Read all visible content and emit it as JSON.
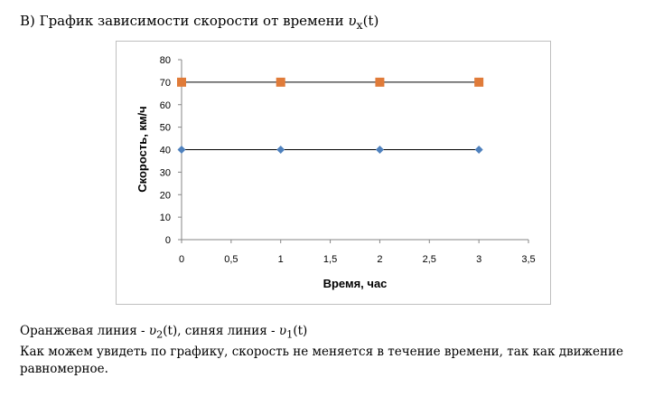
{
  "heading": {
    "prefix": "B)  График зависимости скорости от времени ",
    "variable": "υ",
    "subscript": "x",
    "argument": "(t)"
  },
  "chart_data": {
    "type": "line",
    "xlabel": "Время, час",
    "ylabel": "Скорость, км/ч",
    "xlim": [
      0,
      3.5
    ],
    "ylim": [
      0,
      80
    ],
    "x_ticks": [
      "0",
      "0,5",
      "1",
      "1,5",
      "2",
      "2,5",
      "3",
      "3,5"
    ],
    "y_ticks": [
      "0",
      "10",
      "20",
      "30",
      "40",
      "50",
      "60",
      "70",
      "80"
    ],
    "grid": false,
    "legend": "none",
    "series": [
      {
        "x": [
          0,
          1,
          2,
          3
        ],
        "values": [
          70,
          70,
          70,
          70
        ],
        "marker": "square",
        "color": "#E07B39"
      },
      {
        "x": [
          0,
          1,
          2,
          3
        ],
        "values": [
          40,
          40,
          40,
          40
        ],
        "marker": "diamond",
        "color": "#4F81BD"
      }
    ]
  },
  "caption": {
    "line1_part1": "Оранжевая линия - ",
    "v2_var": "υ",
    "v2_sub": "2",
    "v2_arg": "(t)",
    "line1_part2": ",  синяя линия - ",
    "v1_var": "υ",
    "v1_sub": "1",
    "v1_arg": "(t)",
    "line2": "Как можем увидеть по графику, скорость не меняется в течение времени, так как движение равномерное."
  }
}
